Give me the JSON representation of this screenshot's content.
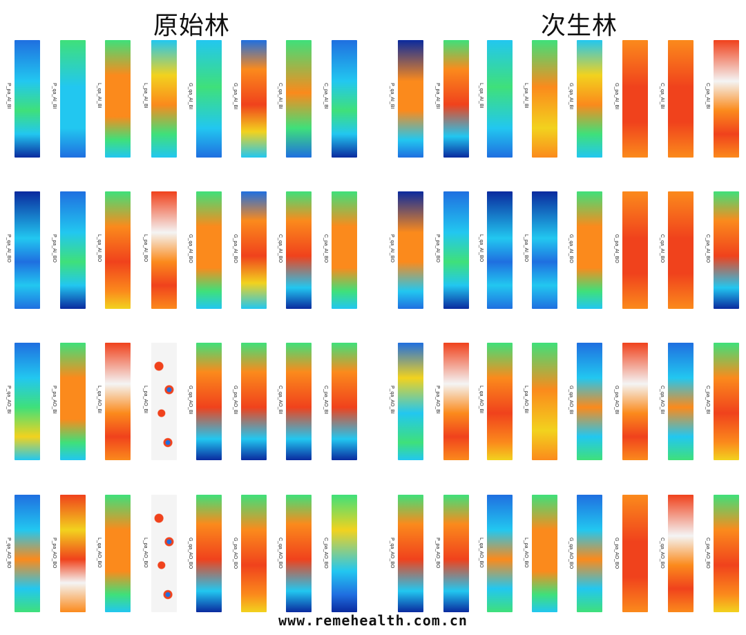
{
  "titles": {
    "left": "原始林",
    "right": "次生林"
  },
  "watermark": "www.remehealth.com.cn",
  "colors": {
    "deep_blue": "#0a2a9e",
    "blue": "#1f6fe0",
    "cyan": "#22c7f0",
    "green": "#3fe07a",
    "yellow": "#f2d21e",
    "orange": "#fb8a1c",
    "red": "#f0421c",
    "white": "#f4f4f4"
  },
  "left_rows": [
    [
      "P_pa_AI_BI",
      "P_qa_AI_BI",
      "L_qa_AI_BI",
      "L_pa_AI_BI",
      "G_qa_AI_BI",
      "G_pa_AI_BI",
      "C_qa_AI_BI",
      "C_pa_AI_BI"
    ],
    [
      "P_qa_AI_BO",
      "P_pa_AI_BO",
      "L_qa_AI_BO",
      "L_pa_AI_BO",
      "G_qa_AI_BO",
      "G_pa_AI_BO",
      "C_qa_AI_BO",
      "C_pa_AI_BO"
    ],
    [
      "P_qa_AO_BI",
      "P_pa_AO_BI",
      "L_qa_AO_BI",
      "L_pa_AO_BI",
      "G_qa_AO_BI",
      "G_pa_AO_BI",
      "C_qa_AO_BI",
      "C_pa_AO_BI"
    ],
    [
      "P_qa_AO_BO",
      "P_pa_AO_BO",
      "L_qa_AO_BO",
      "L_pa_AO_BO",
      "G_qa_AO_BO",
      "G_pa_AO_BO",
      "C_qa_AO_BO",
      "C_pa_AO_BO"
    ]
  ],
  "right_rows": [
    [
      "P_qa_AI_BI",
      "P_pa_AI_BI",
      "L_qa_AI_BI",
      "L_pa_AI_BI",
      "G_qa_AI_BI",
      "G_pa_AI_BI",
      "C_qa_AI_BI",
      "C_pa_AI_BI"
    ],
    [
      "P_qa_AI_BO",
      "P_pa_AI_BO",
      "L_qa_AI_BO",
      "L_pa_AI_BO",
      "G_qa_AI_BO",
      "G_pa_AI_BO",
      "C_qa_AI_BO",
      "C_pa_AI_BO"
    ],
    [
      "P_qa_AO_BI",
      "P_pa_AO_BI",
      "L_qa_AO_BI",
      "L_pa_AO_BI",
      "G_qa_AO_BI",
      "G_pa_AO_BI",
      "C_qa_AO_BI",
      "C_pa_AO_BI"
    ],
    [
      "P_qa_AO_BO",
      "P_pa_AO_BO",
      "L_qa_AO_BO",
      "L_pa_AO_BO",
      "G_qa_AO_BO",
      "G_pa_AO_BO",
      "C_qa_AO_BO",
      "C_pa_AO_BO"
    ]
  ],
  "left_palettes": [
    [
      "cyan-blue",
      "cyan",
      "orange-green",
      "yellow-green",
      "cyan-green",
      "orange-cyan",
      "green-cyan",
      "cyan-blue"
    ],
    [
      "blue-cyan",
      "cyan-blue",
      "orange-red",
      "red-white",
      "orange-green",
      "orange-cyan",
      "orange-blue",
      "orange-green"
    ],
    [
      "cyan-yellow",
      "orange-green",
      "red-white",
      "white-red",
      "orange-blue",
      "orange-blue",
      "orange-blue",
      "orange-blue"
    ],
    [
      "cyan-orange",
      "red-yellow",
      "orange-green",
      "white-red",
      "orange-blue",
      "orange-red",
      "orange-blue",
      "green-blue"
    ]
  ],
  "right_palettes": [
    [
      "blue-orange",
      "orange-blue",
      "cyan-green",
      "orange-yellow",
      "yellow-green",
      "red-orange",
      "red-orange",
      "red-white"
    ],
    [
      "blue-orange",
      "cyan-blue",
      "blue-cyan",
      "blue-cyan",
      "orange-green",
      "red-orange",
      "red-orange",
      "orange-blue"
    ],
    [
      "blue-yellow",
      "red-white",
      "orange-red",
      "orange-yellow",
      "cyan-orange",
      "red-white",
      "cyan-orange",
      "orange-red"
    ],
    [
      "orange-blue",
      "orange-blue",
      "cyan-orange",
      "orange-green",
      "cyan-orange",
      "red-orange",
      "red-white",
      "orange-red"
    ]
  ]
}
